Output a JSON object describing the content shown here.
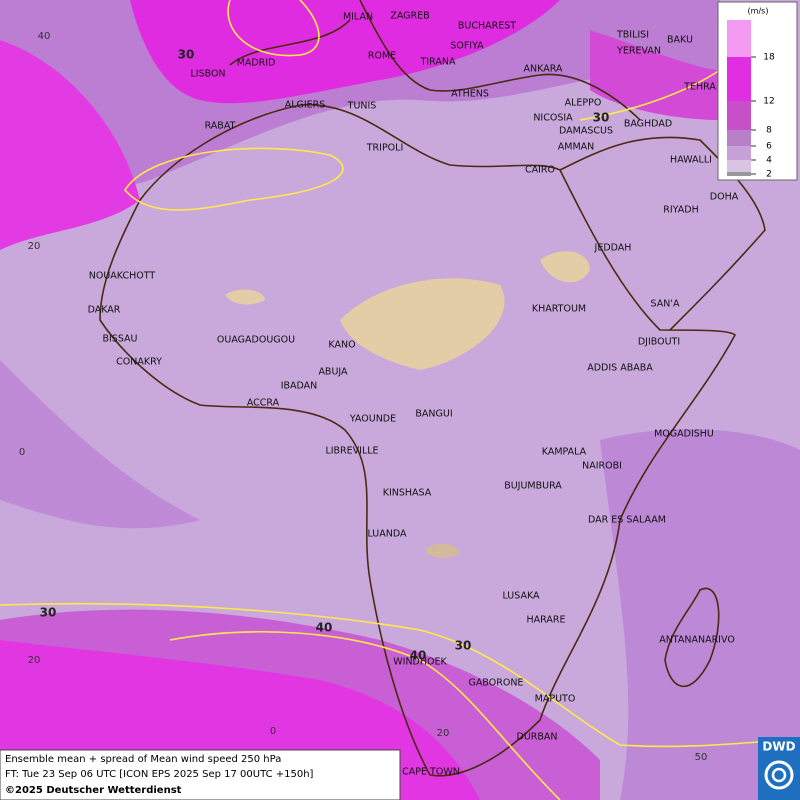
{
  "map": {
    "cities": [
      "MILAN",
      "ZAGREB",
      "BUCHAREST",
      "TBILISI",
      "BAKU",
      "LISBON",
      "MADRID",
      "ROME",
      "SOFIYA",
      "TIRANA",
      "ANKARA",
      "YEREVAN",
      "TEHRA",
      "ALGIERS",
      "TUNIS",
      "ATHENS",
      "ALEPPO",
      "RABAT",
      "NICOSIA",
      "BAGHDAD",
      "DAMASCUS",
      "TRIPOLI",
      "AMMAN",
      "HAWALLI",
      "CAIRO",
      "DOHA",
      "RIYADH",
      "JEDDAH",
      "NOUAKCHOTT",
      "SAN'A",
      "DAKAR",
      "KHARTOUM",
      "BISSAU",
      "OUAGADOUGOU",
      "KANO",
      "DJIBOUTI",
      "CONAKRY",
      "ABUJA",
      "ADDIS ABABA",
      "IBADAN",
      "ACCRA",
      "BANGUI",
      "YAOUNDE",
      "MOGADISHU",
      "LIBREVILLE",
      "KAMPALA",
      "NAIROBI",
      "KINSHASA",
      "BUJUMBURA",
      "DAR ES SALAAM",
      "LUANDA",
      "LUSAKA",
      "HARARE",
      "ANTANANARIVO",
      "WINDHOEK",
      "GABORONE",
      "MAPUTO",
      "DURBAN",
      "CAPE TOWN"
    ],
    "contour_labels": [
      30,
      30,
      30,
      40,
      40,
      30
    ],
    "grid_labels": [
      40,
      20,
      0,
      20,
      0,
      20,
      50
    ],
    "legend": {
      "unit": "(m/s)",
      "ticks": [
        18,
        12,
        8,
        6,
        4,
        2
      ]
    },
    "footer": [
      "Ensemble mean + spread of Mean wind speed 250 hPa",
      "FT: Tue 23 Sep 06 UTC [ICON EPS 2025 Sep 17 00UTC +150h]",
      "©2025 Deutscher Wetterdienst"
    ],
    "logo": "DWD"
  }
}
